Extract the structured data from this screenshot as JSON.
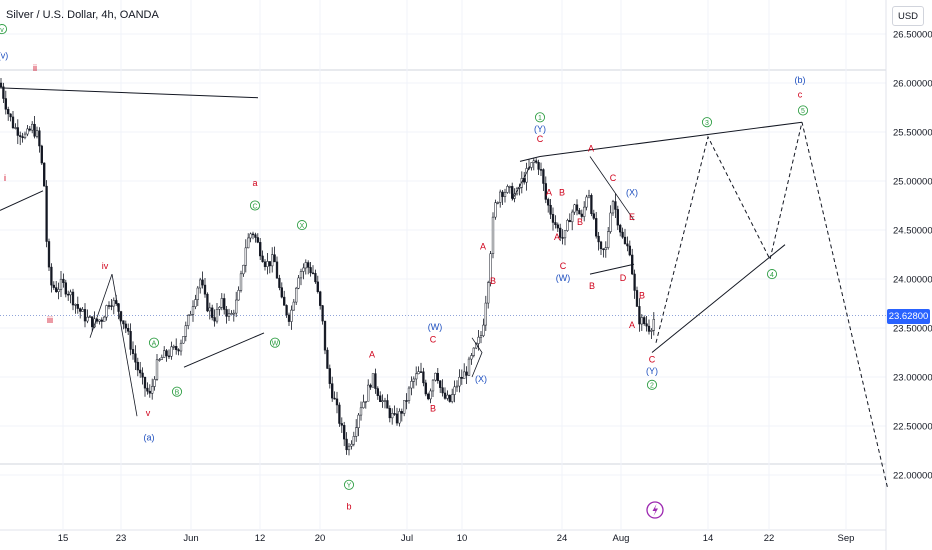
{
  "header": {
    "title": "Silver / U.S. Dollar, 4h, OANDA",
    "currency": "USD"
  },
  "colors": {
    "up": "#131722",
    "down": "#131722",
    "red_label": "#d0021b",
    "green_label": "#2f9e44",
    "blue_label": "#1e4fbf",
    "grid": "#f0f3fa",
    "price_line": "#90a4d8",
    "price_tag": "#2962ff"
  },
  "chart_data": {
    "type": "candlestick",
    "symbol": "Silver / U.S. Dollar",
    "interval": "4h",
    "source": "OANDA",
    "ylim": [
      21.75,
      26.6
    ],
    "y_ticks": [
      "26.50000",
      "26.00000",
      "25.50000",
      "25.00000",
      "24.50000",
      "24.00000",
      "23.50000",
      "23.00000",
      "22.50000",
      "22.00000"
    ],
    "x_ticks": [
      "15",
      "23",
      "Jun",
      "12",
      "20",
      "Jul",
      "10",
      "24",
      "Aug",
      "14",
      "22",
      "Sep"
    ],
    "current_price": "23.62800",
    "path": [
      [
        0,
        26.0
      ],
      [
        8,
        25.7
      ],
      [
        14,
        25.55
      ],
      [
        20,
        25.5
      ],
      [
        26,
        25.45
      ],
      [
        32,
        25.55
      ],
      [
        38,
        25.45
      ],
      [
        44,
        25.0
      ],
      [
        47,
        24.3
      ],
      [
        50,
        23.95
      ],
      [
        56,
        23.9
      ],
      [
        62,
        23.95
      ],
      [
        70,
        23.85
      ],
      [
        78,
        23.7
      ],
      [
        86,
        23.6
      ],
      [
        94,
        23.55
      ],
      [
        102,
        23.6
      ],
      [
        110,
        23.8
      ],
      [
        118,
        23.7
      ],
      [
        126,
        23.5
      ],
      [
        134,
        23.2
      ],
      [
        142,
        22.95
      ],
      [
        150,
        22.8
      ],
      [
        156,
        23.1
      ],
      [
        162,
        23.2
      ],
      [
        170,
        23.25
      ],
      [
        178,
        23.3
      ],
      [
        186,
        23.5
      ],
      [
        194,
        23.8
      ],
      [
        200,
        24.0
      ],
      [
        206,
        23.75
      ],
      [
        214,
        23.6
      ],
      [
        222,
        23.75
      ],
      [
        230,
        23.6
      ],
      [
        238,
        23.8
      ],
      [
        246,
        24.35
      ],
      [
        252,
        24.5
      ],
      [
        258,
        24.35
      ],
      [
        266,
        24.15
      ],
      [
        274,
        24.2
      ],
      [
        282,
        23.75
      ],
      [
        290,
        23.6
      ],
      [
        298,
        24.05
      ],
      [
        306,
        24.15
      ],
      [
        314,
        24.05
      ],
      [
        322,
        23.6
      ],
      [
        328,
        23.0
      ],
      [
        336,
        22.7
      ],
      [
        342,
        22.45
      ],
      [
        348,
        22.25
      ],
      [
        354,
        22.45
      ],
      [
        360,
        22.7
      ],
      [
        366,
        22.8
      ],
      [
        372,
        23.0
      ],
      [
        380,
        22.8
      ],
      [
        388,
        22.65
      ],
      [
        396,
        22.55
      ],
      [
        404,
        22.7
      ],
      [
        412,
        22.95
      ],
      [
        420,
        23.05
      ],
      [
        428,
        22.8
      ],
      [
        436,
        23.1
      ],
      [
        442,
        22.8
      ],
      [
        450,
        22.75
      ],
      [
        458,
        22.95
      ],
      [
        466,
        23.05
      ],
      [
        474,
        23.25
      ],
      [
        482,
        23.45
      ],
      [
        488,
        24.0
      ],
      [
        494,
        24.7
      ],
      [
        500,
        24.9
      ],
      [
        508,
        24.9
      ],
      [
        516,
        24.85
      ],
      [
        522,
        25.0
      ],
      [
        528,
        25.1
      ],
      [
        534,
        25.2
      ],
      [
        540,
        25.15
      ],
      [
        546,
        24.8
      ],
      [
        552,
        24.65
      ],
      [
        558,
        24.5
      ],
      [
        564,
        24.4
      ],
      [
        570,
        24.65
      ],
      [
        576,
        24.75
      ],
      [
        582,
        24.6
      ],
      [
        588,
        24.95
      ],
      [
        594,
        24.55
      ],
      [
        600,
        24.25
      ],
      [
        606,
        24.3
      ],
      [
        612,
        24.85
      ],
      [
        618,
        24.6
      ],
      [
        624,
        24.35
      ],
      [
        630,
        24.3
      ],
      [
        634,
        23.9
      ],
      [
        638,
        23.6
      ],
      [
        644,
        23.55
      ],
      [
        650,
        23.5
      ],
      [
        655,
        23.62
      ]
    ],
    "projection": [
      [
        656,
        23.35
      ],
      [
        708,
        25.45
      ],
      [
        770,
        24.2
      ],
      [
        802,
        25.6
      ],
      [
        888,
        21.85
      ]
    ],
    "trendlines": [
      [
        [
          0,
          25.95
        ],
        [
          258,
          25.85
        ]
      ],
      [
        [
          0,
          24.7
        ],
        [
          43,
          24.9
        ]
      ],
      [
        [
          652,
          23.25
        ],
        [
          785,
          24.35
        ]
      ],
      [
        [
          520,
          25.2
        ],
        [
          540,
          25.25
        ]
      ],
      [
        [
          540,
          25.25
        ],
        [
          802,
          25.6
        ]
      ],
      [
        [
          184,
          23.1
        ],
        [
          264,
          23.45
        ]
      ],
      [
        [
          590,
          24.05
        ],
        [
          634,
          24.15
        ]
      ]
    ],
    "annotations": [
      {
        "text": "ii",
        "x": 35,
        "y": 26.12,
        "color": "red"
      },
      {
        "text": "i",
        "x": 5,
        "y": 25.0,
        "color": "red"
      },
      {
        "text": "iv",
        "x": 105,
        "y": 24.1,
        "color": "red"
      },
      {
        "text": "iii",
        "x": 50,
        "y": 23.55,
        "color": "red"
      },
      {
        "text": "v",
        "x": 148,
        "y": 22.6,
        "color": "red"
      },
      {
        "text": "(a)",
        "x": 149,
        "y": 22.35,
        "color": "blue"
      },
      {
        "text": "a",
        "x": 255,
        "y": 24.95,
        "color": "red"
      },
      {
        "text": "b",
        "x": 349,
        "y": 21.65,
        "color": "red"
      },
      {
        "text": "A",
        "x": 372,
        "y": 23.2,
        "color": "red"
      },
      {
        "text": "C",
        "x": 433,
        "y": 23.35,
        "color": "red"
      },
      {
        "text": "B",
        "x": 433,
        "y": 22.65,
        "color": "red"
      },
      {
        "text": "(W)",
        "x": 435,
        "y": 23.48,
        "color": "blue"
      },
      {
        "text": "(X)",
        "x": 481,
        "y": 22.95,
        "color": "blue"
      },
      {
        "text": "A",
        "x": 483,
        "y": 24.3,
        "color": "red"
      },
      {
        "text": "B",
        "x": 493,
        "y": 23.95,
        "color": "red"
      },
      {
        "text": "(Y)",
        "x": 540,
        "y": 25.5,
        "color": "blue"
      },
      {
        "text": "C",
        "x": 540,
        "y": 25.4,
        "color": "red"
      },
      {
        "text": "A",
        "x": 549,
        "y": 24.85,
        "color": "red"
      },
      {
        "text": "B",
        "x": 562,
        "y": 24.85,
        "color": "red"
      },
      {
        "text": "A",
        "x": 557,
        "y": 24.4,
        "color": "red"
      },
      {
        "text": "C",
        "x": 563,
        "y": 24.1,
        "color": "red"
      },
      {
        "text": "(W)",
        "x": 563,
        "y": 23.98,
        "color": "blue"
      },
      {
        "text": "B",
        "x": 580,
        "y": 24.55,
        "color": "red"
      },
      {
        "text": "A",
        "x": 591,
        "y": 25.3,
        "color": "red"
      },
      {
        "text": "C",
        "x": 613,
        "y": 25.0,
        "color": "red"
      },
      {
        "text": "(X)",
        "x": 632,
        "y": 24.85,
        "color": "blue"
      },
      {
        "text": "E",
        "x": 632,
        "y": 24.6,
        "color": "red"
      },
      {
        "text": "D",
        "x": 623,
        "y": 23.98,
        "color": "red"
      },
      {
        "text": "B",
        "x": 592,
        "y": 23.9,
        "color": "red"
      },
      {
        "text": "B",
        "x": 642,
        "y": 23.8,
        "color": "red"
      },
      {
        "text": "A",
        "x": 632,
        "y": 23.5,
        "color": "red"
      },
      {
        "text": "C",
        "x": 652,
        "y": 23.15,
        "color": "red"
      },
      {
        "text": "(Y)",
        "x": 652,
        "y": 23.03,
        "color": "blue"
      },
      {
        "text": "(b)",
        "x": 800,
        "y": 26.0,
        "color": "blue"
      },
      {
        "text": "c",
        "x": 800,
        "y": 25.85,
        "color": "red"
      },
      {
        "text": "(v)",
        "x": 3,
        "y": 26.25,
        "color": "blue"
      }
    ],
    "circled": [
      {
        "text": "v",
        "x": 2,
        "y": 26.55,
        "color": "green"
      },
      {
        "text": "C",
        "x": 255,
        "y": 24.75,
        "color": "green"
      },
      {
        "text": "X",
        "x": 302,
        "y": 24.55,
        "color": "green"
      },
      {
        "text": "W",
        "x": 275,
        "y": 23.35,
        "color": "green"
      },
      {
        "text": "A",
        "x": 154,
        "y": 23.35,
        "color": "green"
      },
      {
        "text": "B",
        "x": 177,
        "y": 22.85,
        "color": "green"
      },
      {
        "text": "Y",
        "x": 349,
        "y": 21.9,
        "color": "green"
      },
      {
        "text": "1",
        "x": 540,
        "y": 25.65,
        "color": "green"
      },
      {
        "text": "2",
        "x": 652,
        "y": 22.92,
        "color": "green"
      },
      {
        "text": "3",
        "x": 707,
        "y": 25.6,
        "color": "green"
      },
      {
        "text": "4",
        "x": 772,
        "y": 24.05,
        "color": "green"
      },
      {
        "text": "5",
        "x": 803,
        "y": 25.72,
        "color": "green"
      }
    ]
  }
}
